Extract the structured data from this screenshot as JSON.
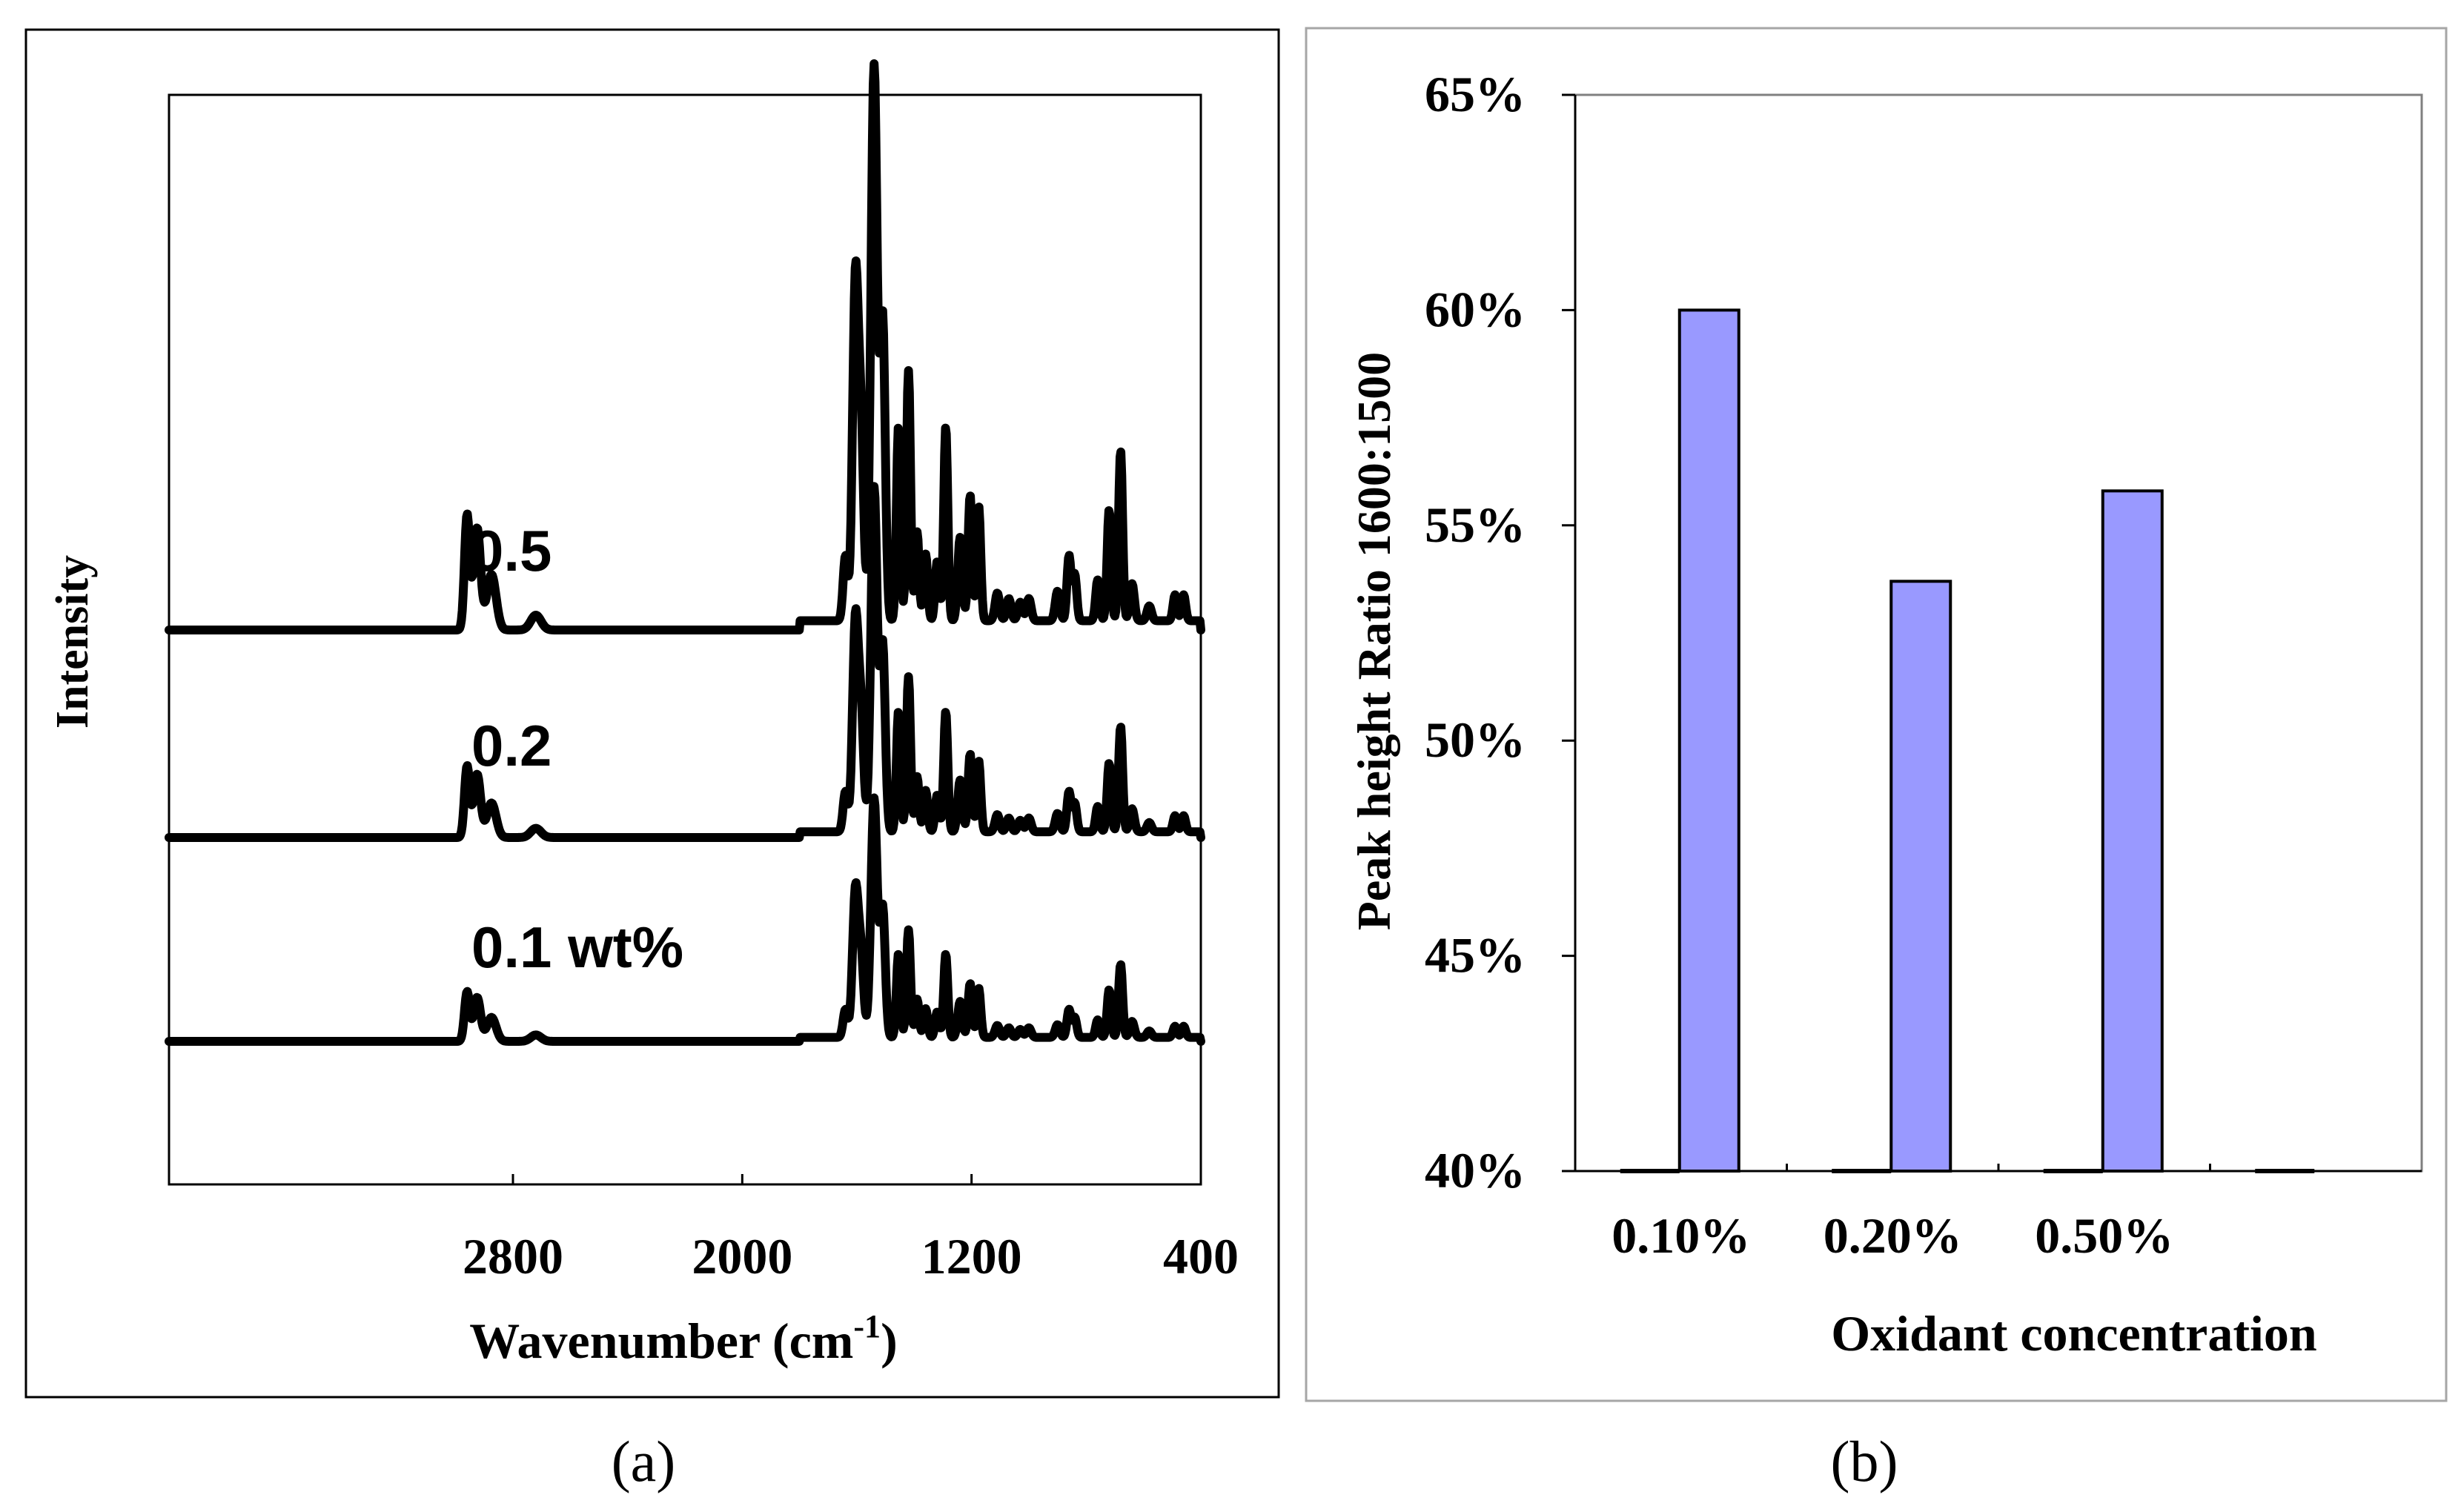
{
  "panel_labels": [
    "(a)",
    "(b)"
  ],
  "chart_data": [
    {
      "type": "line",
      "panel": "(a)",
      "xlabel_main": "Wavenumber (cm",
      "xlabel_sup": "-1",
      "xlabel_close": ")",
      "ylabel": "Intensity",
      "xlim": [
        4000,
        400
      ],
      "xticks": [
        2800,
        2000,
        1200,
        400
      ],
      "xtick_labels": [
        "2800",
        "2000",
        "1200",
        "400"
      ],
      "grid": false,
      "series": [
        {
          "name": "0.5",
          "label": "0.5",
          "baseline": 2.22,
          "scale": 1.0
        },
        {
          "name": "0.2",
          "label": "0.2",
          "baseline": 1.1,
          "scale": 0.62
        },
        {
          "name": "0.1 wt%",
          "label": "0.1 wt%",
          "baseline": 0.0,
          "scale": 0.43
        }
      ],
      "peaks": [
        {
          "x": 2960,
          "h": 0.62,
          "w": 9
        },
        {
          "x": 2925,
          "h": 0.55,
          "w": 12
        },
        {
          "x": 2875,
          "h": 0.3,
          "w": 16
        },
        {
          "x": 2720,
          "h": 0.08,
          "w": 18
        },
        {
          "x": 1640,
          "h": 0.35,
          "w": 8
        },
        {
          "x": 1605,
          "h": 1.85,
          "w": 10
        },
        {
          "x": 1585,
          "h": 0.95,
          "w": 9
        },
        {
          "x": 1540,
          "h": 3.0,
          "w": 11
        },
        {
          "x": 1510,
          "h": 1.6,
          "w": 9
        },
        {
          "x": 1455,
          "h": 1.05,
          "w": 7
        },
        {
          "x": 1420,
          "h": 1.35,
          "w": 7
        },
        {
          "x": 1390,
          "h": 0.48,
          "w": 7
        },
        {
          "x": 1360,
          "h": 0.36,
          "w": 7
        },
        {
          "x": 1320,
          "h": 0.32,
          "w": 7
        },
        {
          "x": 1290,
          "h": 1.05,
          "w": 7
        },
        {
          "x": 1240,
          "h": 0.45,
          "w": 8
        },
        {
          "x": 1205,
          "h": 0.68,
          "w": 7
        },
        {
          "x": 1175,
          "h": 0.62,
          "w": 7
        },
        {
          "x": 1110,
          "h": 0.15,
          "w": 8
        },
        {
          "x": 1070,
          "h": 0.12,
          "w": 8
        },
        {
          "x": 1030,
          "h": 0.1,
          "w": 8
        },
        {
          "x": 1000,
          "h": 0.12,
          "w": 8
        },
        {
          "x": 900,
          "h": 0.16,
          "w": 8
        },
        {
          "x": 860,
          "h": 0.35,
          "w": 7
        },
        {
          "x": 840,
          "h": 0.25,
          "w": 7
        },
        {
          "x": 760,
          "h": 0.22,
          "w": 7
        },
        {
          "x": 720,
          "h": 0.6,
          "w": 7
        },
        {
          "x": 680,
          "h": 0.92,
          "w": 7
        },
        {
          "x": 640,
          "h": 0.2,
          "w": 8
        },
        {
          "x": 580,
          "h": 0.08,
          "w": 8
        },
        {
          "x": 490,
          "h": 0.14,
          "w": 7
        },
        {
          "x": 460,
          "h": 0.14,
          "w": 7
        }
      ]
    },
    {
      "type": "bar",
      "panel": "(b)",
      "categories": [
        "0.10%",
        "0.20%",
        "0.50%",
        ""
      ],
      "values": [
        0.6,
        0.537,
        0.558,
        0.4
      ],
      "xlabel": "Oxidant concentration",
      "ylabel": "Peak height Ratio 1600:1500",
      "ylim": [
        0.4,
        0.65
      ],
      "yticks": [
        0.4,
        0.45,
        0.5,
        0.55,
        0.6,
        0.65
      ],
      "ytick_labels": [
        "40%",
        "45%",
        "50%",
        "55%",
        "60%",
        "65%"
      ],
      "grid": false,
      "bar_color": "#9999ff"
    }
  ]
}
